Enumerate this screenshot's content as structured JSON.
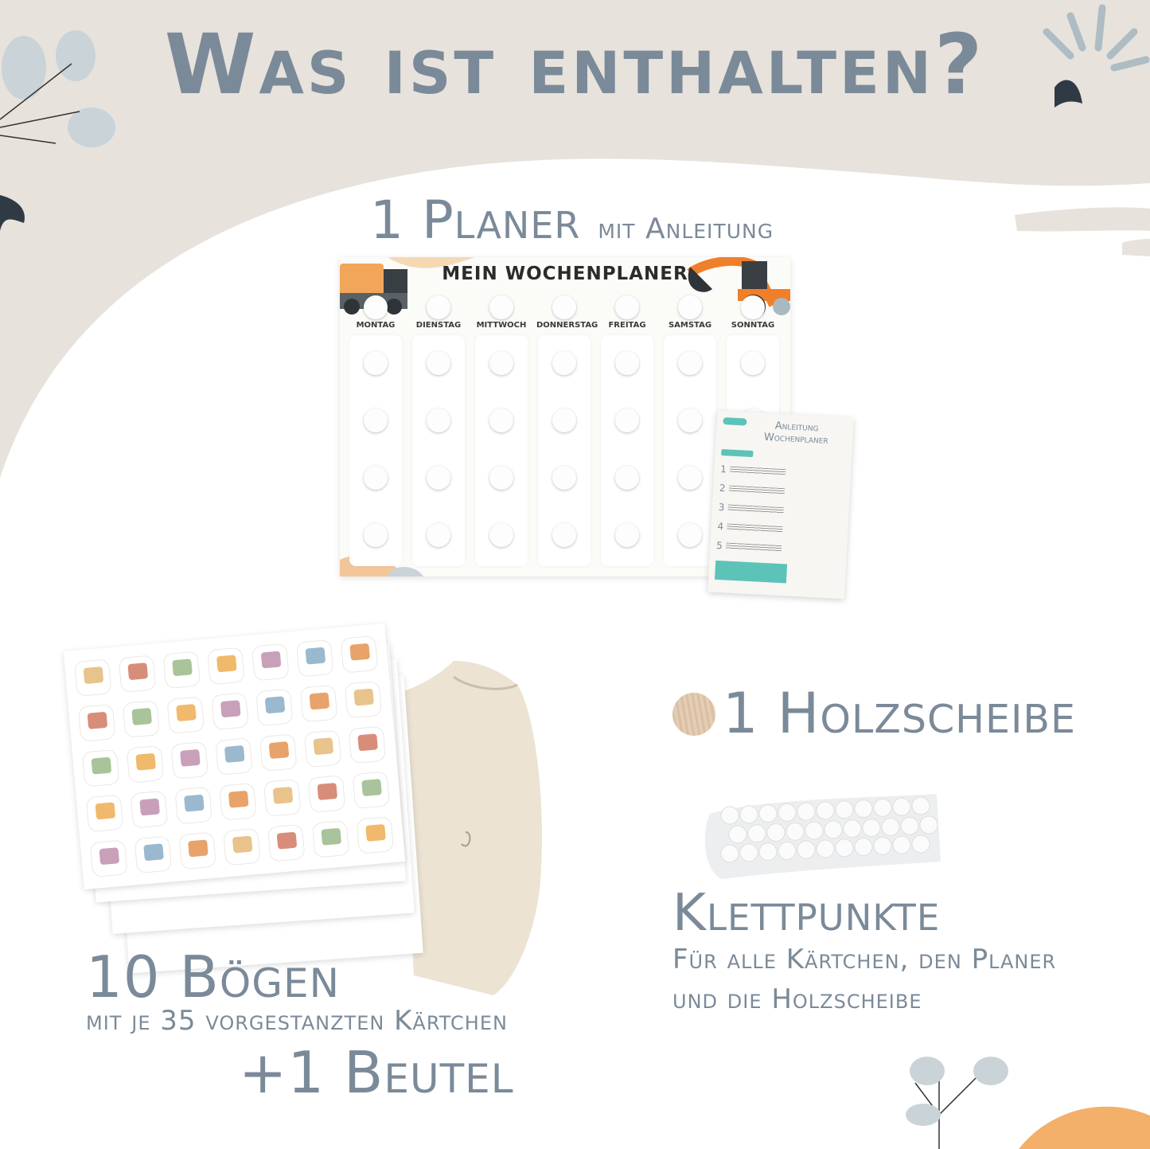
{
  "title": "Was ist enthalten?",
  "colors": {
    "text": "#7b8a99",
    "background": "#e7e2dc",
    "accent_orange": "#f2a65a",
    "teal": "#5cc3b8"
  },
  "planner_section": {
    "heading_main": "1 Planer",
    "heading_small": "mit Anleitung",
    "planner": {
      "title": "MEIN WOCHENPLANER",
      "days": [
        "MONTAG",
        "DIENSTAG",
        "MITTWOCH",
        "DONNERSTAG",
        "FREITAG",
        "SAMSTAG",
        "SONNTAG"
      ]
    },
    "instruction_card": {
      "title_line1": "Anleitung",
      "title_line2": "Wochenplaner",
      "steps": [
        "1",
        "2",
        "3",
        "4",
        "5"
      ]
    }
  },
  "holz_section": {
    "heading": "1 Holzscheibe"
  },
  "klett_section": {
    "heading": "Klettpunkte",
    "sub_line1": "Für alle Kärtchen, den Planer",
    "sub_line2": "und die Holzscheibe"
  },
  "boegen_section": {
    "heading": "10 Bögen",
    "sub": "mit je 35 vorgestanzten Kärtchen",
    "bag_heading": "+1 Beutel"
  }
}
